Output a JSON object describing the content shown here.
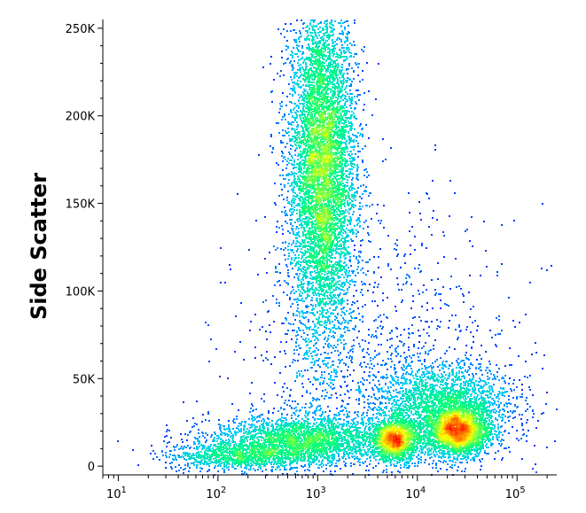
{
  "chart_data": {
    "type": "scatter",
    "style": "density-colored dot plot",
    "ylabel": "Side Scatter",
    "xlabel": "",
    "x_scale": "log",
    "xlim": [
      7,
      250000
    ],
    "ylim": [
      -5000,
      255000
    ],
    "grid": false,
    "legend": "none",
    "x_ticks": [
      {
        "value": 10,
        "base": "10",
        "exp": "1"
      },
      {
        "value": 100,
        "base": "10",
        "exp": "2"
      },
      {
        "value": 1000,
        "base": "10",
        "exp": "3"
      },
      {
        "value": 10000,
        "base": "10",
        "exp": "4"
      },
      {
        "value": 100000,
        "base": "10",
        "exp": "5"
      }
    ],
    "y_ticks": [
      {
        "value": 0,
        "label": "0"
      },
      {
        "value": 50000,
        "label": "50K"
      },
      {
        "value": 100000,
        "label": "100K"
      },
      {
        "value": 150000,
        "label": "150K"
      },
      {
        "value": 200000,
        "label": "200K"
      },
      {
        "value": 250000,
        "label": "250K"
      }
    ],
    "populations": [
      {
        "x": 1100,
        "y": 170000,
        "sx": 0.17,
        "sy": 50000,
        "n": 9000
      },
      {
        "x": 6000,
        "y": 15000,
        "sx": 0.12,
        "sy": 6000,
        "n": 1400
      },
      {
        "x": 25000,
        "y": 20000,
        "sx": 0.16,
        "sy": 7000,
        "n": 2200
      },
      {
        "x": 18000,
        "y": 35000,
        "sx": 0.35,
        "sy": 12000,
        "n": 2200
      },
      {
        "x": 700,
        "y": 15000,
        "sx": 0.45,
        "sy": 7000,
        "n": 2600
      },
      {
        "x": 150,
        "y": 6000,
        "sx": 0.35,
        "sy": 4000,
        "n": 900
      },
      {
        "x": 4000,
        "y": 45000,
        "sx": 0.7,
        "sy": 50000,
        "n": 1500
      }
    ],
    "colors": {
      "low": "#0000ff",
      "mid_low": "#00c8ff",
      "mid": "#00ff80",
      "mid_high": "#ffff00",
      "high": "#ff0000"
    }
  }
}
